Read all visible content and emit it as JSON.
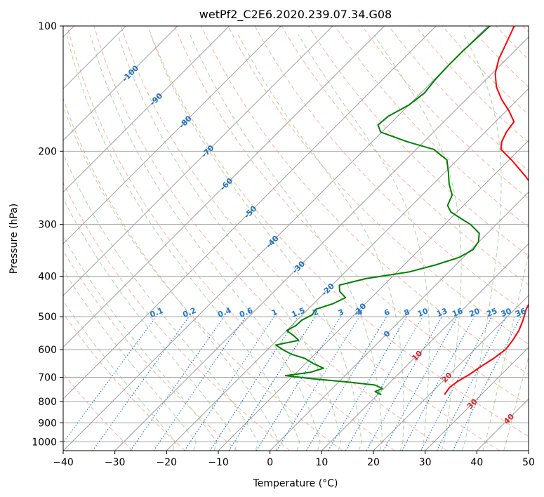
{
  "chart_data": {
    "type": "line",
    "subtype": "skew-t log-p diagram",
    "title": "wetPf2_C2E6.2020.239.07.34.G08",
    "xlabel": "Temperature (°C)",
    "ylabel": "Pressure (hPa)",
    "xlim": [
      -40,
      50
    ],
    "ylim": [
      1050,
      100
    ],
    "yscale": "log",
    "grid": true,
    "x_ticks": [
      -40,
      -30,
      -20,
      -10,
      0,
      10,
      20,
      30,
      40,
      50
    ],
    "x_tick_labels": [
      "−40",
      "−30",
      "−20",
      "−10",
      "0",
      "10",
      "20",
      "30",
      "40",
      "50"
    ],
    "y_ticks": [
      100,
      200,
      300,
      400,
      500,
      600,
      700,
      800,
      900,
      1000
    ],
    "y_tick_labels": [
      "100",
      "200",
      "300",
      "400",
      "500",
      "600",
      "700",
      "800",
      "900",
      "1000"
    ],
    "colors": {
      "temperature": "#ff0000",
      "dewpoint": "#008000",
      "isotherm": "#a0a0a0",
      "dry_adiabat": "#fbb19c",
      "moist_adiabat": "#a9d6a3",
      "mixing_ratio": "#1f77d4",
      "label_blue": "#1f6fbf",
      "label_red": "#d62728"
    },
    "series": [
      {
        "name": "",
        "color": "#ff0000",
        "points": [
          {
            "p": 770,
            "t": 22.9
          },
          {
            "p": 740,
            "t": 22.5
          },
          {
            "p": 715,
            "t": 22.9
          },
          {
            "p": 690,
            "t": 23.8
          },
          {
            "p": 660,
            "t": 24.5
          },
          {
            "p": 630,
            "t": 25.4
          },
          {
            "p": 600,
            "t": 26.0
          },
          {
            "p": 570,
            "t": 25.6
          },
          {
            "p": 540,
            "t": 24.9
          },
          {
            "p": 510,
            "t": 23.7
          },
          {
            "p": 480,
            "t": 22.2
          },
          {
            "p": 450,
            "t": 21.1
          },
          {
            "p": 420,
            "t": 19.6
          },
          {
            "p": 390,
            "t": 17.2
          },
          {
            "p": 360,
            "t": 14.0
          },
          {
            "p": 330,
            "t": 10.2
          },
          {
            "p": 310,
            "t": 7.9
          },
          {
            "p": 290,
            "t": 6.6
          },
          {
            "p": 270,
            "t": 4.8
          },
          {
            "p": 250,
            "t": 1.4
          },
          {
            "p": 230,
            "t": -3.6
          },
          {
            "p": 210,
            "t": -9.5
          },
          {
            "p": 198,
            "t": -13.6
          },
          {
            "p": 190,
            "t": -14.9
          },
          {
            "p": 180,
            "t": -15.9
          },
          {
            "p": 170,
            "t": -16.4
          },
          {
            "p": 160,
            "t": -19.5
          },
          {
            "p": 150,
            "t": -23.2
          },
          {
            "p": 140,
            "t": -26.6
          },
          {
            "p": 130,
            "t": -29.4
          },
          {
            "p": 120,
            "t": -31.5
          },
          {
            "p": 110,
            "t": -33.1
          },
          {
            "p": 100,
            "t": -34.9
          }
        ]
      },
      {
        "name": "",
        "color": "#008000",
        "points": [
          {
            "p": 770,
            "t": 10.7
          },
          {
            "p": 757,
            "t": 8.9
          },
          {
            "p": 744,
            "t": 9.7
          },
          {
            "p": 730,
            "t": 7.6
          },
          {
            "p": 718,
            "t": 1.8
          },
          {
            "p": 705,
            "t": -5.8
          },
          {
            "p": 693,
            "t": -11.5
          },
          {
            "p": 680,
            "t": -7.3
          },
          {
            "p": 665,
            "t": -5.6
          },
          {
            "p": 650,
            "t": -8.2
          },
          {
            "p": 630,
            "t": -11.1
          },
          {
            "p": 615,
            "t": -14.6
          },
          {
            "p": 600,
            "t": -17.1
          },
          {
            "p": 585,
            "t": -19.3
          },
          {
            "p": 570,
            "t": -15.8
          },
          {
            "p": 555,
            "t": -17.7
          },
          {
            "p": 540,
            "t": -20.0
          },
          {
            "p": 525,
            "t": -19.2
          },
          {
            "p": 510,
            "t": -19.1
          },
          {
            "p": 495,
            "t": -18.1
          },
          {
            "p": 480,
            "t": -18.5
          },
          {
            "p": 465,
            "t": -16.2
          },
          {
            "p": 450,
            "t": -15.0
          },
          {
            "p": 435,
            "t": -17.3
          },
          {
            "p": 420,
            "t": -18.6
          },
          {
            "p": 405,
            "t": -14.7
          },
          {
            "p": 390,
            "t": -7.6
          },
          {
            "p": 375,
            "t": -3.8
          },
          {
            "p": 360,
            "t": -0.8
          },
          {
            "p": 345,
            "t": 0.4
          },
          {
            "p": 330,
            "t": -0.1
          },
          {
            "p": 315,
            "t": -1.6
          },
          {
            "p": 300,
            "t": -5.0
          },
          {
            "p": 290,
            "t": -8.1
          },
          {
            "p": 280,
            "t": -11.2
          },
          {
            "p": 270,
            "t": -13.1
          },
          {
            "p": 255,
            "t": -14.2
          },
          {
            "p": 240,
            "t": -16.9
          },
          {
            "p": 225,
            "t": -19.3
          },
          {
            "p": 210,
            "t": -22.0
          },
          {
            "p": 198,
            "t": -26.6
          },
          {
            "p": 190,
            "t": -33.1
          },
          {
            "p": 180,
            "t": -40.2
          },
          {
            "p": 173,
            "t": -42.1
          },
          {
            "p": 165,
            "t": -41.8
          },
          {
            "p": 155,
            "t": -40.0
          },
          {
            "p": 145,
            "t": -39.3
          },
          {
            "p": 135,
            "t": -39.8
          },
          {
            "p": 125,
            "t": -40.0
          },
          {
            "p": 115,
            "t": -40.0
          },
          {
            "p": 100,
            "t": -39.6
          }
        ]
      }
    ],
    "isotherm_labels": [
      {
        "text": "-100",
        "t": -100,
        "p": 130
      },
      {
        "text": "-90",
        "t": -90,
        "p": 150
      },
      {
        "text": "-80",
        "t": -80,
        "p": 170
      },
      {
        "text": "-70",
        "t": -70,
        "p": 200
      },
      {
        "text": "-60",
        "t": -60,
        "p": 240
      },
      {
        "text": "-50",
        "t": -50,
        "p": 280
      },
      {
        "text": "-40",
        "t": -40,
        "p": 330
      },
      {
        "text": "-30",
        "t": -30,
        "p": 380
      },
      {
        "text": "-20",
        "t": -20,
        "p": 430
      },
      {
        "text": "-10",
        "t": -10,
        "p": 480
      },
      {
        "text": "0",
        "t": 0,
        "p": 550
      },
      {
        "text": "10",
        "t": 10,
        "p": 620
      },
      {
        "text": "20",
        "t": 20,
        "p": 700
      },
      {
        "text": "30",
        "t": 30,
        "p": 810
      },
      {
        "text": "40",
        "t": 40,
        "p": 880
      }
    ],
    "mixing_ratio_labels": [
      "0.1",
      "0.2",
      "0.4",
      "0.6",
      "1",
      "1.5",
      "2",
      "3",
      "4",
      "6",
      "8",
      "10",
      "13",
      "16",
      "20",
      "25",
      "30",
      "36"
    ],
    "mixing_ratio_values": [
      0.1,
      0.2,
      0.4,
      0.6,
      1,
      1.5,
      2,
      3,
      4,
      6,
      8,
      10,
      13,
      16,
      20,
      25,
      30,
      36
    ]
  }
}
